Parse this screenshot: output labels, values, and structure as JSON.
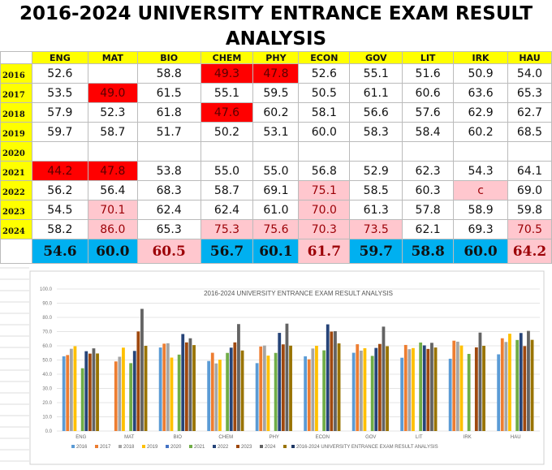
{
  "title": "2016-2024 UNIVERSITY ENTRANCE EXAM RESULT ANALYSIS",
  "table": {
    "columns": [
      "ENG",
      "MAT",
      "BIO",
      "CHEM",
      "PHY",
      "ECON",
      "GOV",
      "LIT",
      "IRK",
      "HAU"
    ],
    "rows": [
      {
        "year": "2016",
        "cells": [
          "52.6",
          "",
          "58.8",
          "49.3",
          "47.8",
          "52.6",
          "55.1",
          "51.6",
          "50.9",
          "54.0"
        ],
        "style": [
          "",
          "",
          "",
          "r",
          "r",
          "",
          "",
          "",
          "",
          ""
        ]
      },
      {
        "year": "2017",
        "cells": [
          "53.5",
          "49.0",
          "61.5",
          "55.1",
          "59.5",
          "50.5",
          "61.1",
          "60.6",
          "63.6",
          "65.3"
        ],
        "style": [
          "",
          "r",
          "",
          "",
          "",
          "",
          "",
          "",
          "",
          ""
        ]
      },
      {
        "year": "2018",
        "cells": [
          "57.9",
          "52.3",
          "61.8",
          "47.6",
          "60.2",
          "58.1",
          "56.6",
          "57.6",
          "62.9",
          "62.7"
        ],
        "style": [
          "",
          "",
          "",
          "r",
          "",
          "",
          "",
          "",
          "",
          ""
        ]
      },
      {
        "year": "2019",
        "cells": [
          "59.7",
          "58.7",
          "51.7",
          "50.2",
          "53.1",
          "60.0",
          "58.3",
          "58.4",
          "60.2",
          "68.5"
        ],
        "style": [
          "",
          "",
          "",
          "",
          "",
          "",
          "",
          "",
          "",
          ""
        ]
      },
      {
        "year": "2020",
        "cells": [
          "",
          "",
          "",
          "",
          "",
          "",
          "",
          "",
          "",
          ""
        ],
        "style": [
          "",
          "",
          "",
          "",
          "",
          "",
          "",
          "",
          "",
          ""
        ]
      },
      {
        "year": "2021",
        "cells": [
          "44.2",
          "47.8",
          "53.8",
          "55.0",
          "55.0",
          "56.8",
          "52.9",
          "62.3",
          "54.3",
          "64.1"
        ],
        "style": [
          "r",
          "r",
          "",
          "",
          "",
          "",
          "",
          "",
          "",
          ""
        ]
      },
      {
        "year": "2022",
        "cells": [
          "56.2",
          "56.4",
          "68.3",
          "58.7",
          "69.1",
          "75.1",
          "58.5",
          "60.3",
          "c",
          "69.0"
        ],
        "style": [
          "",
          "",
          "",
          "",
          "",
          "p",
          "",
          "",
          "p",
          ""
        ]
      },
      {
        "year": "2023",
        "cells": [
          "54.5",
          "70.1",
          "62.4",
          "62.4",
          "61.0",
          "70.0",
          "61.3",
          "57.8",
          "58.9",
          "59.8"
        ],
        "style": [
          "",
          "p",
          "",
          "",
          "",
          "p",
          "",
          "",
          "",
          ""
        ]
      },
      {
        "year": "2024",
        "cells": [
          "58.2",
          "86.0",
          "65.3",
          "75.3",
          "75.6",
          "70.3",
          "73.5",
          "62.1",
          "69.3",
          "70.5"
        ],
        "style": [
          "",
          "p",
          "",
          "p",
          "p",
          "p",
          "p",
          "",
          "",
          "p"
        ]
      }
    ],
    "averages": [
      "54.6",
      "60.0",
      "60.5",
      "56.7",
      "60.1",
      "61.7",
      "59.7",
      "58.8",
      "60.0",
      "64.2"
    ],
    "average_style": [
      "b",
      "b",
      "p",
      "b",
      "b",
      "p",
      "b",
      "b",
      "b",
      "p"
    ]
  },
  "colors": {
    "red": "#ff0000",
    "pink": "#ffc7ce",
    "blue": "#00b0f0",
    "yellow": "#ffff00"
  },
  "chart_data": {
    "type": "bar",
    "title": "2016-2024 UNIVERSITY ENTRANCE EXAM RESULT ANALYSIS",
    "categories": [
      "ENG",
      "MAT",
      "BIO",
      "CHEM",
      "PHY",
      "ECON",
      "GOV",
      "LIT",
      "IRK",
      "HAU"
    ],
    "ylim": [
      0,
      100
    ],
    "yticks": [
      "0.0",
      "10.0",
      "20.0",
      "30.0",
      "40.0",
      "50.0",
      "60.0",
      "70.0",
      "80.0",
      "90.0",
      "100.0"
    ],
    "grid": true,
    "legend_position": "bottom",
    "series": [
      {
        "name": "2016",
        "color": "#5b9bd5",
        "values": [
          52.6,
          null,
          58.8,
          49.3,
          47.8,
          52.6,
          55.1,
          51.6,
          50.9,
          54.0
        ]
      },
      {
        "name": "2017",
        "color": "#ed7d31",
        "values": [
          53.5,
          49.0,
          61.5,
          55.1,
          59.5,
          50.5,
          61.1,
          60.6,
          63.6,
          65.3
        ]
      },
      {
        "name": "2018",
        "color": "#a5a5a5",
        "values": [
          57.9,
          52.3,
          61.8,
          47.6,
          60.2,
          58.1,
          56.6,
          57.6,
          62.9,
          62.7
        ]
      },
      {
        "name": "2019",
        "color": "#ffc000",
        "values": [
          59.7,
          58.7,
          51.7,
          50.2,
          53.1,
          60.0,
          58.3,
          58.4,
          60.2,
          68.5
        ]
      },
      {
        "name": "2020",
        "color": "#4472c4",
        "values": [
          null,
          null,
          null,
          null,
          null,
          null,
          null,
          null,
          null,
          null
        ]
      },
      {
        "name": "2021",
        "color": "#70ad47",
        "values": [
          44.2,
          47.8,
          53.8,
          55.0,
          55.0,
          56.8,
          52.9,
          62.3,
          54.3,
          64.1
        ]
      },
      {
        "name": "2022",
        "color": "#264478",
        "values": [
          56.2,
          56.4,
          68.3,
          58.7,
          69.1,
          75.1,
          58.5,
          60.3,
          null,
          69.0
        ]
      },
      {
        "name": "2023",
        "color": "#9e480e",
        "values": [
          54.5,
          70.1,
          62.4,
          62.4,
          61.0,
          70.0,
          61.3,
          57.8,
          58.9,
          59.8
        ]
      },
      {
        "name": "2024",
        "color": "#636363",
        "values": [
          58.2,
          86.0,
          65.3,
          75.3,
          75.6,
          70.3,
          73.5,
          62.1,
          69.3,
          70.5
        ]
      },
      {
        "name": "",
        "color": "#997300",
        "values": [
          54.6,
          60.0,
          60.5,
          56.7,
          60.1,
          61.7,
          59.7,
          58.8,
          60.0,
          64.2
        ]
      }
    ],
    "extra_legend_entry": {
      "name": "2016-2024 UNIVERSITY ENTRANCE EXAM RESULT ANALYSIS",
      "color": "#1f3864"
    }
  }
}
